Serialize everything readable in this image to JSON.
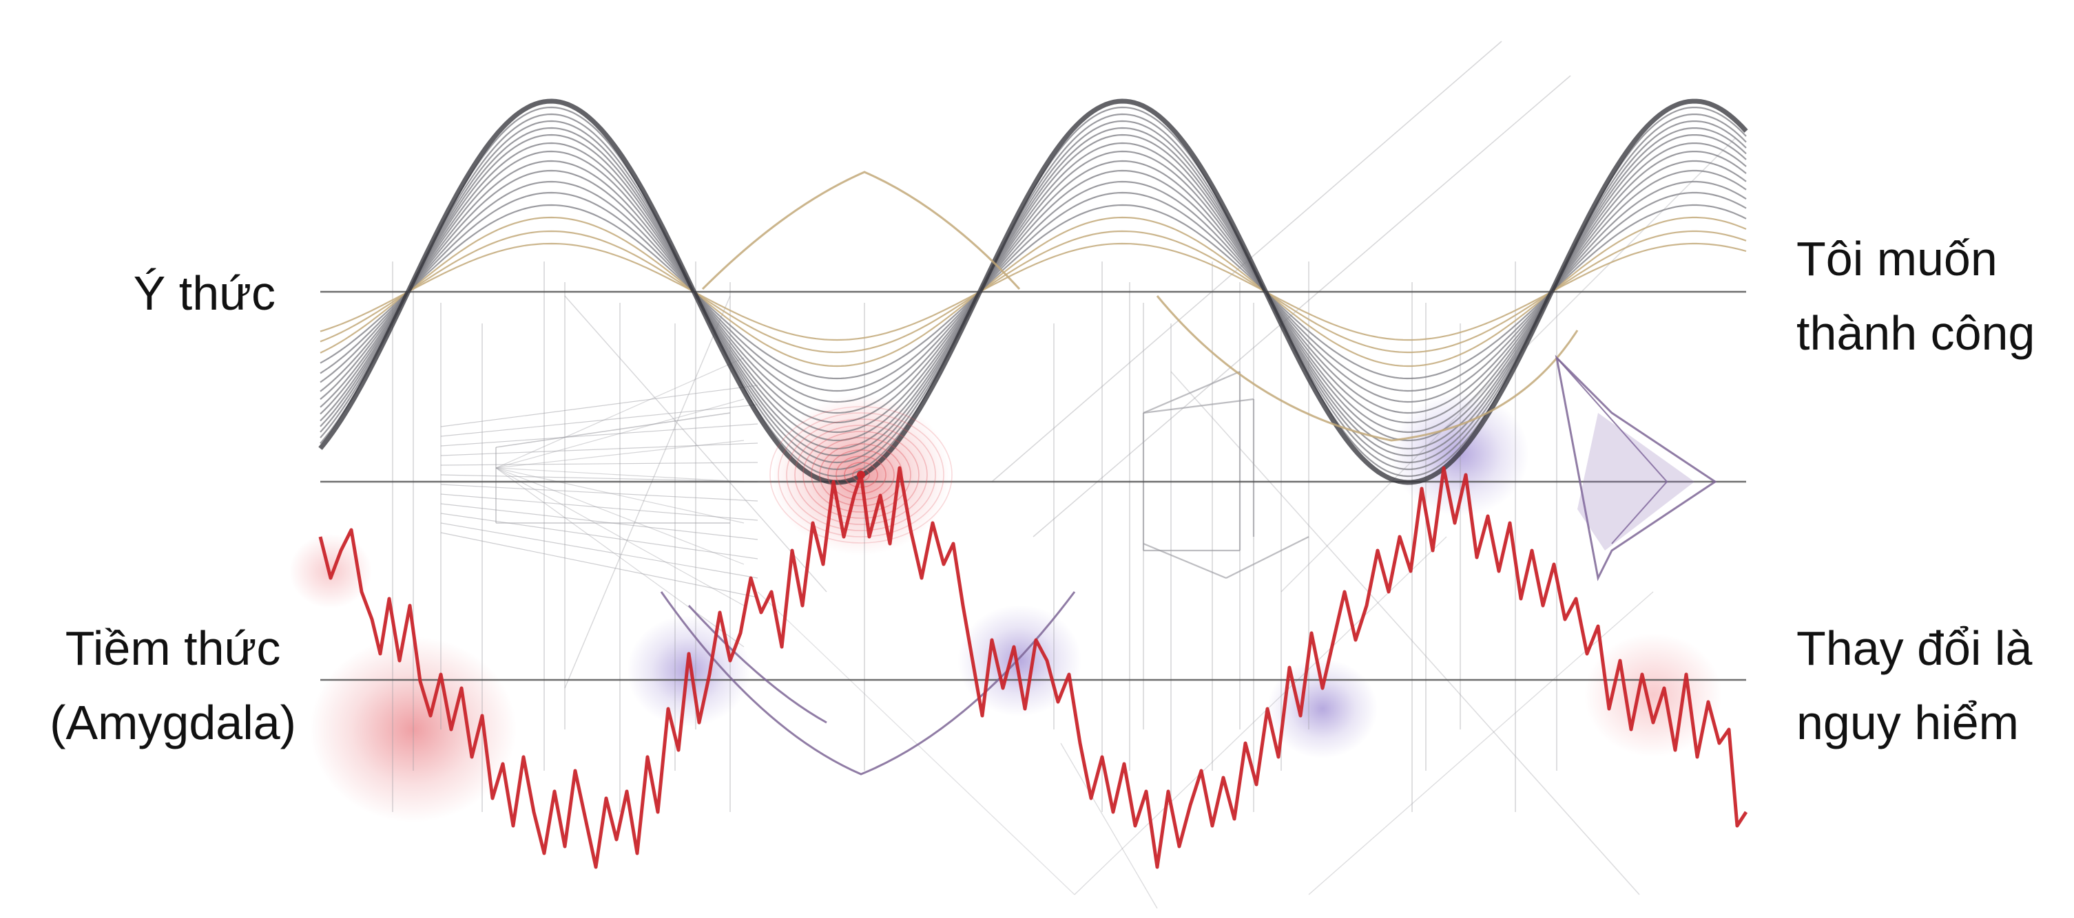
{
  "labels": {
    "conscious": "Ý thức",
    "subconscious_line1": "Tiềm thức",
    "subconscious_line2": "(Amygdala)",
    "want_line1": "Tôi muốn",
    "want_line2": "thành công",
    "danger_line1": "Thay đổi là",
    "danger_line2": "nguy hiểm"
  },
  "colors": {
    "sine_dark": "#2e2e34",
    "sine_gray": "#7a7a80",
    "sine_gold": "#c2a878",
    "noise_red": "#c9252b",
    "glow_red": "#e2525a",
    "glow_purple": "#7a5cc0",
    "sketch": "#9a9aa0",
    "purple_line": "#7d6595",
    "ref_line": "#555555"
  }
}
